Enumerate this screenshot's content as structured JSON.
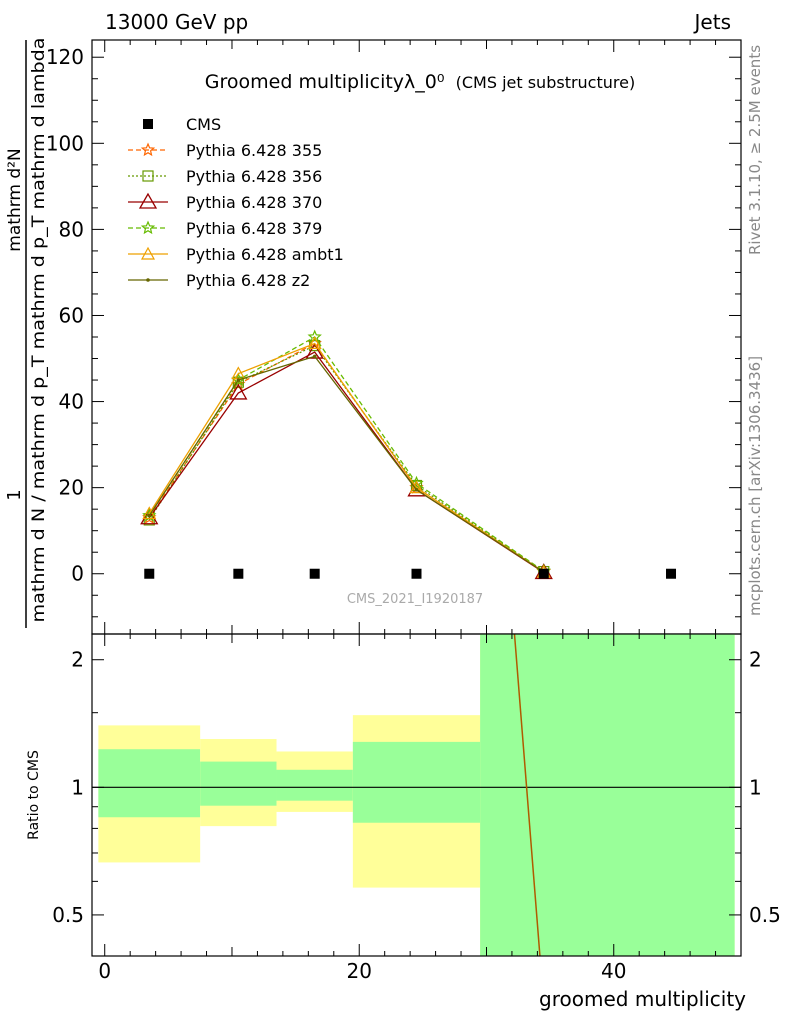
{
  "header": {
    "left": "13000 GeV pp",
    "right": "Jets"
  },
  "side_text": {
    "top": "Rivet 3.1.10, ≥ 2.5M events",
    "bottom": "mcplots.cern.ch [arXiv:1306.3436]"
  },
  "chart_data": {
    "type": "line",
    "title": "Groomed multiplicityλ_0⁰",
    "subtitle": "(CMS jet substructure)",
    "watermark": "CMS_2021_I1920187",
    "xlabel": "groomed multiplicity",
    "ylabel_numerator": "mathrm d²N",
    "ylabel_denominator": "mathrm d N / mathrm d p_T mathrm d p_T mathrm d lambda",
    "ylabel_prefix": "1",
    "xlim": [
      -1,
      50
    ],
    "ylim": [
      -14,
      124
    ],
    "x_ticks": [
      0,
      20,
      40
    ],
    "y_ticks": [
      0,
      20,
      40,
      60,
      80,
      100,
      120
    ],
    "grid": false,
    "legend_position": "top-left",
    "reference": {
      "name": "CMS",
      "x": [
        3.5,
        10.5,
        16.5,
        24.5,
        34.5,
        44.5
      ],
      "y": [
        0,
        0,
        0,
        0,
        0,
        0
      ]
    },
    "series": [
      {
        "name": "Pythia 6.428 355",
        "color": "#ff6600",
        "dash": "5,3",
        "marker": "star",
        "x": [
          3.5,
          10.5,
          16.5,
          24.5,
          34.5
        ],
        "y": [
          13.0,
          44.0,
          53.5,
          20.0,
          0.5
        ]
      },
      {
        "name": "Pythia 6.428 356",
        "color": "#669900",
        "dash": "2,2",
        "marker": "square",
        "x": [
          3.5,
          10.5,
          16.5,
          24.5,
          34.5
        ],
        "y": [
          12.5,
          44.5,
          53.0,
          20.5,
          0.5
        ]
      },
      {
        "name": "Pythia 6.428 370",
        "color": "#990000",
        "dash": "",
        "marker": "triangle-big",
        "x": [
          3.5,
          10.5,
          16.5,
          24.5,
          34.5
        ],
        "y": [
          13.0,
          42.0,
          51.5,
          19.5,
          0.3
        ]
      },
      {
        "name": "Pythia 6.428 379",
        "color": "#66bb00",
        "dash": "5,3",
        "marker": "star",
        "x": [
          3.5,
          10.5,
          16.5,
          24.5,
          34.5
        ],
        "y": [
          13.5,
          45.0,
          55.0,
          21.0,
          0.6
        ]
      },
      {
        "name": "Pythia 6.428 ambt1",
        "color": "#eea000",
        "dash": "",
        "marker": "triangle",
        "x": [
          3.5,
          10.5,
          16.5,
          24.5,
          34.5
        ],
        "y": [
          14.0,
          46.5,
          53.5,
          20.0,
          0.4
        ]
      },
      {
        "name": "Pythia 6.428 z2",
        "color": "#666600",
        "dash": "",
        "marker": "dot",
        "x": [
          3.5,
          10.5,
          16.5,
          24.5,
          34.5
        ],
        "y": [
          13.5,
          45.0,
          50.5,
          19.5,
          0.4
        ]
      }
    ],
    "ratio": {
      "ylabel": "Ratio to CMS",
      "ylim": [
        0.4,
        2.3
      ],
      "y_ticks": [
        0.5,
        1,
        2
      ],
      "y_tick_labels": [
        "0.5",
        "1",
        "2"
      ],
      "bands": [
        {
          "x0": -0.5,
          "x1": 7.5,
          "yellow": [
            0.665,
            1.4
          ],
          "green": [
            0.85,
            1.23
          ]
        },
        {
          "x0": 7.5,
          "x1": 13.5,
          "yellow": [
            0.81,
            1.3
          ],
          "green": [
            0.905,
            1.15
          ]
        },
        {
          "x0": 13.5,
          "x1": 19.5,
          "yellow": [
            0.875,
            1.215
          ],
          "green": [
            0.93,
            1.1
          ]
        },
        {
          "x0": 19.5,
          "x1": 29.5,
          "yellow": [
            0.58,
            1.48
          ],
          "green": [
            0.825,
            1.28
          ]
        },
        {
          "x0": 29.5,
          "x1": 49.5,
          "yellow": [
            0.4,
            2.3
          ],
          "green": [
            0.4,
            2.3
          ]
        }
      ],
      "line": {
        "color": "#b05a00",
        "x": [
          32.2,
          34.2
        ],
        "y": [
          2.3,
          0.4
        ]
      }
    }
  }
}
